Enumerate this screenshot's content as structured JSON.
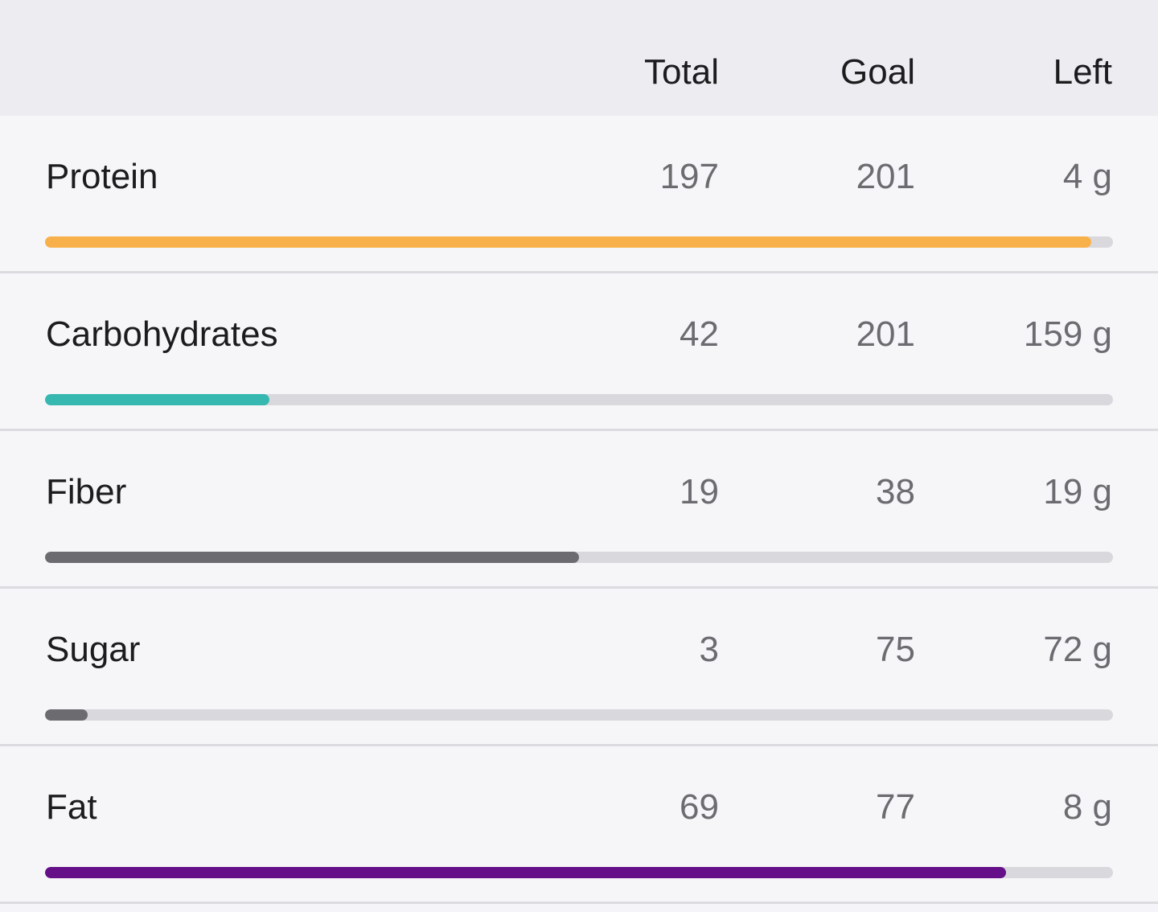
{
  "header": {
    "total_label": "Total",
    "goal_label": "Goal",
    "left_label": "Left"
  },
  "rows": [
    {
      "name": "Protein",
      "total": "197",
      "goal": "201",
      "left": "4 g",
      "progress": 0.98,
      "color": "#f8b14a"
    },
    {
      "name": "Carbohydrates",
      "total": "42",
      "goal": "201",
      "left": "159 g",
      "progress": 0.21,
      "color": "#36b8b0"
    },
    {
      "name": "Fiber",
      "total": "19",
      "goal": "38",
      "left": "19 g",
      "progress": 0.5,
      "color": "#6b6b70"
    },
    {
      "name": "Sugar",
      "total": "3",
      "goal": "75",
      "left": "72 g",
      "progress": 0.04,
      "color": "#6b6b70"
    },
    {
      "name": "Fat",
      "total": "69",
      "goal": "77",
      "left": "8 g",
      "progress": 0.9,
      "color": "#651088"
    }
  ]
}
